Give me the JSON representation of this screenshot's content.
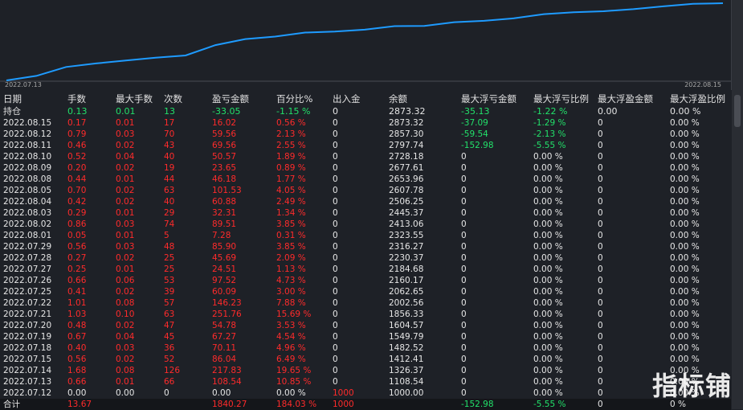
{
  "chart": {
    "start_date": "2022.07.13",
    "end_date": "2022.08.15",
    "line_color": "#1e9bff",
    "values": [
      1000.0,
      1108.54,
      1326.37,
      1412.41,
      1482.52,
      1549.79,
      1604.57,
      1856.33,
      2002.56,
      2062.65,
      2160.17,
      2184.68,
      2230.37,
      2316.27,
      2323.55,
      2413.06,
      2445.37,
      2506.25,
      2607.78,
      2653.96,
      2677.61,
      2728.18,
      2797.74,
      2857.3,
      2873.32
    ]
  },
  "columns": [
    "日期",
    "手数",
    "最大手数",
    "次数",
    "盈亏金额",
    "百分比%",
    "出入金",
    "余额",
    "最大浮亏金额",
    "最大浮亏比例",
    "最大浮盈金额",
    "最大浮盈比例"
  ],
  "hold_row": [
    "持仓",
    "0.13",
    "0.01",
    "13",
    "-33.05",
    "-1.15 %",
    "0",
    "2873.32",
    "-35.13",
    "-1.22 %",
    "0.00",
    "0.00 %"
  ],
  "rows": [
    [
      "2022.08.15",
      "0.17",
      "0.01",
      "17",
      "16.02",
      "0.56 %",
      "0",
      "2873.32",
      "-37.09",
      "-1.29 %",
      "0",
      "0.00 %"
    ],
    [
      "2022.08.12",
      "0.79",
      "0.03",
      "70",
      "59.56",
      "2.13 %",
      "0",
      "2857.30",
      "-59.54",
      "-2.13 %",
      "0",
      "0.00 %"
    ],
    [
      "2022.08.11",
      "0.46",
      "0.02",
      "43",
      "69.56",
      "2.55 %",
      "0",
      "2797.74",
      "-152.98",
      "-5.55 %",
      "0",
      "0.00 %"
    ],
    [
      "2022.08.10",
      "0.52",
      "0.04",
      "40",
      "50.57",
      "1.89 %",
      "0",
      "2728.18",
      "0",
      "0.00 %",
      "0",
      "0.00 %"
    ],
    [
      "2022.08.09",
      "0.20",
      "0.02",
      "19",
      "23.65",
      "0.89 %",
      "0",
      "2677.61",
      "0",
      "0.00 %",
      "0",
      "0.00 %"
    ],
    [
      "2022.08.08",
      "0.44",
      "0.01",
      "44",
      "46.18",
      "1.77 %",
      "0",
      "2653.96",
      "0",
      "0.00 %",
      "0",
      "0.00 %"
    ],
    [
      "2022.08.05",
      "0.70",
      "0.02",
      "63",
      "101.53",
      "4.05 %",
      "0",
      "2607.78",
      "0",
      "0.00 %",
      "0",
      "0.00 %"
    ],
    [
      "2022.08.04",
      "0.42",
      "0.02",
      "40",
      "60.88",
      "2.49 %",
      "0",
      "2506.25",
      "0",
      "0.00 %",
      "0",
      "0.00 %"
    ],
    [
      "2022.08.03",
      "0.29",
      "0.01",
      "29",
      "32.31",
      "1.34 %",
      "0",
      "2445.37",
      "0",
      "0.00 %",
      "0",
      "0.00 %"
    ],
    [
      "2022.08.02",
      "0.86",
      "0.03",
      "74",
      "89.51",
      "3.85 %",
      "0",
      "2413.06",
      "0",
      "0.00 %",
      "0",
      "0.00 %"
    ],
    [
      "2022.08.01",
      "0.05",
      "0.01",
      "5",
      "7.28",
      "0.31 %",
      "0",
      "2323.55",
      "0",
      "0.00 %",
      "0",
      "0.00 %"
    ],
    [
      "2022.07.29",
      "0.56",
      "0.03",
      "48",
      "85.90",
      "3.85 %",
      "0",
      "2316.27",
      "0",
      "0.00 %",
      "0",
      "0.00 %"
    ],
    [
      "2022.07.28",
      "0.27",
      "0.02",
      "25",
      "45.69",
      "2.09 %",
      "0",
      "2230.37",
      "0",
      "0.00 %",
      "0",
      "0.00 %"
    ],
    [
      "2022.07.27",
      "0.25",
      "0.01",
      "25",
      "24.51",
      "1.13 %",
      "0",
      "2184.68",
      "0",
      "0.00 %",
      "0",
      "0.00 %"
    ],
    [
      "2022.07.26",
      "0.66",
      "0.06",
      "53",
      "97.52",
      "4.73 %",
      "0",
      "2160.17",
      "0",
      "0.00 %",
      "0",
      "0.00 %"
    ],
    [
      "2022.07.25",
      "0.41",
      "0.02",
      "39",
      "60.09",
      "3.00 %",
      "0",
      "2062.65",
      "0",
      "0.00 %",
      "0",
      "0.00 %"
    ],
    [
      "2022.07.22",
      "1.01",
      "0.08",
      "57",
      "146.23",
      "7.88 %",
      "0",
      "2002.56",
      "0",
      "0.00 %",
      "0",
      "0.00 %"
    ],
    [
      "2022.07.21",
      "1.03",
      "0.10",
      "63",
      "251.76",
      "15.69 %",
      "0",
      "1856.33",
      "0",
      "0.00 %",
      "0",
      "0.00 %"
    ],
    [
      "2022.07.20",
      "0.48",
      "0.02",
      "47",
      "54.78",
      "3.53 %",
      "0",
      "1604.57",
      "0",
      "0.00 %",
      "0",
      "0.00 %"
    ],
    [
      "2022.07.19",
      "0.67",
      "0.04",
      "45",
      "67.27",
      "4.54 %",
      "0",
      "1549.79",
      "0",
      "0.00 %",
      "0",
      "0.00 %"
    ],
    [
      "2022.07.18",
      "0.40",
      "0.03",
      "36",
      "70.11",
      "4.96 %",
      "0",
      "1482.52",
      "0",
      "0.00 %",
      "0",
      "0.00 %"
    ],
    [
      "2022.07.15",
      "0.56",
      "0.02",
      "52",
      "86.04",
      "6.49 %",
      "0",
      "1412.41",
      "0",
      "0.00 %",
      "0",
      "0.00 %"
    ],
    [
      "2022.07.14",
      "1.68",
      "0.08",
      "126",
      "217.83",
      "19.65 %",
      "0",
      "1326.37",
      "0",
      "0.00 %",
      "0",
      "0.00 %"
    ],
    [
      "2022.07.13",
      "0.66",
      "0.01",
      "66",
      "108.54",
      "10.85 %",
      "0",
      "1108.54",
      "0",
      "0.00 %",
      "0",
      "0.00 %"
    ],
    [
      "2022.07.12",
      "0.00",
      "0.00",
      "0",
      "0.00",
      "0.00 %",
      "1000",
      "1000.00",
      "0",
      "0.00 %",
      "0",
      "0.00 %"
    ]
  ],
  "total_row": [
    "合计",
    "13.67",
    "",
    "",
    "1840.27",
    "184.03 %",
    "1000",
    "",
    "-152.98",
    "-5.55 %",
    "0",
    "0 %"
  ],
  "watermark": "指标铺"
}
